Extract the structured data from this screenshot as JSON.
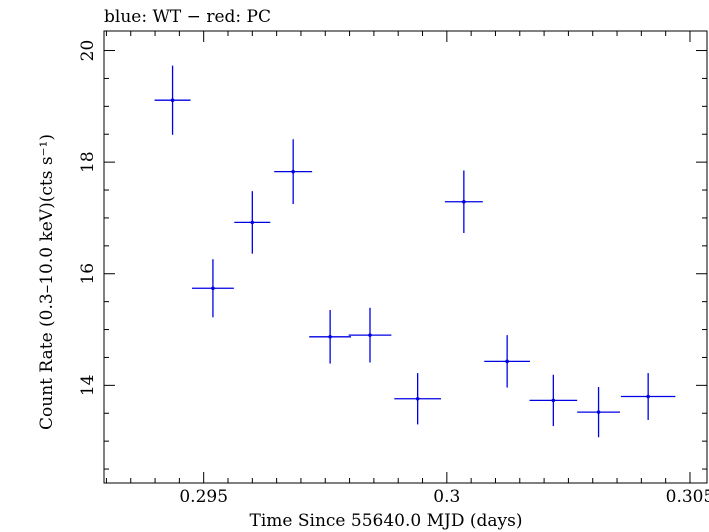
{
  "chart_data": {
    "type": "scatter",
    "title": "blue: WT − red: PC",
    "xlabel": "Time Since 55640.0 MJD (days)",
    "ylabel": "Count Rate (0.3–10.0 keV)(cts s⁻¹)",
    "xlim": [
      0.29295,
      0.30535
    ],
    "ylim": [
      12.25,
      20.35
    ],
    "x_ticks": [
      0.295,
      0.3,
      0.305
    ],
    "x_tick_labels": [
      "0.295",
      "0.3",
      "0.305"
    ],
    "y_ticks": [
      14,
      16,
      18,
      20
    ],
    "y_tick_labels": [
      "14",
      "16",
      "18",
      "20"
    ],
    "grid": false,
    "series": [
      {
        "color": "#0000e6",
        "x": [
          0.29436,
          0.29519,
          0.296,
          0.29684,
          0.2976,
          0.29842,
          0.2994,
          0.30035,
          0.30124,
          0.30219,
          0.30312,
          0.30414
        ],
        "xerr": [
          0.00037,
          0.00043,
          0.00037,
          0.00039,
          0.00043,
          0.00044,
          0.00048,
          0.00039,
          0.00047,
          0.00049,
          0.00044,
          0.00056
        ],
        "y": [
          19.11,
          15.74,
          16.92,
          17.83,
          14.87,
          14.9,
          13.76,
          17.29,
          14.43,
          13.73,
          13.52,
          13.8
        ],
        "yerr": [
          0.62,
          0.52,
          0.56,
          0.58,
          0.48,
          0.49,
          0.46,
          0.56,
          0.47,
          0.46,
          0.45,
          0.42
        ]
      }
    ]
  }
}
